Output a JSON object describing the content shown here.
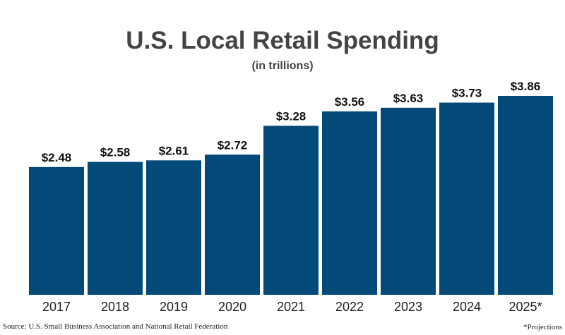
{
  "chart_data": {
    "type": "bar",
    "title": "U.S. Local Retail Spending",
    "subtitle": "(in trillions)",
    "categories": [
      "2017",
      "2018",
      "2019",
      "2020",
      "2021",
      "2022",
      "2023",
      "2024",
      "2025*"
    ],
    "values": [
      2.48,
      2.58,
      2.61,
      2.72,
      3.28,
      3.56,
      3.63,
      3.73,
      3.86
    ],
    "value_labels": [
      "$2.48",
      "$2.58",
      "$2.61",
      "$2.72",
      "$3.28",
      "$3.56",
      "$3.63",
      "$3.73",
      "$3.86"
    ],
    "color": "#034a78",
    "source": "Source: U.S. Small Business Association and National Retail Federation",
    "note": "*Projections"
  }
}
